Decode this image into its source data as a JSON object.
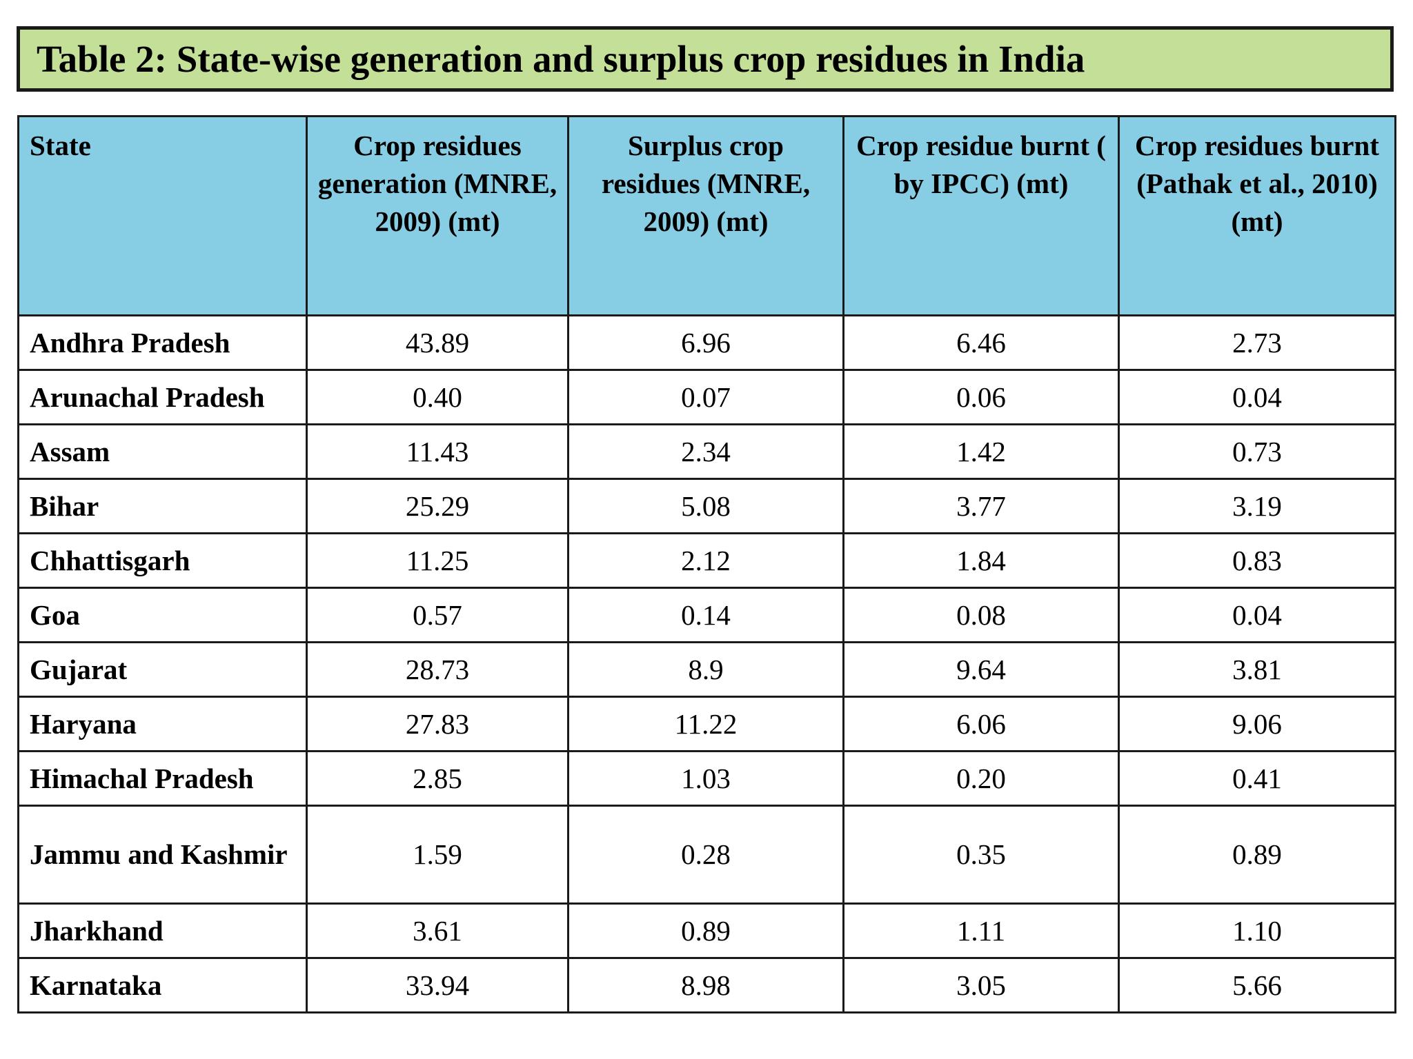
{
  "title": "Table 2: State-wise generation and surplus crop residues in India",
  "table": {
    "headers": [
      "State",
      "Crop residues generation (MNRE, 2009) (mt)",
      "Surplus crop residues (MNRE, 2009) (mt)",
      "Crop residue burnt ( by IPCC) (mt)",
      "Crop residues burnt (Pathak et al., 2010) (mt)"
    ],
    "rows": [
      {
        "state": "Andhra Pradesh",
        "generation": "43.89",
        "surplus": "6.96",
        "burnt_ipcc": "6.46",
        "burnt_pathak": "2.73"
      },
      {
        "state": "Arunachal Pradesh",
        "generation": "0.40",
        "surplus": "0.07",
        "burnt_ipcc": "0.06",
        "burnt_pathak": "0.04"
      },
      {
        "state": "Assam",
        "generation": "11.43",
        "surplus": "2.34",
        "burnt_ipcc": "1.42",
        "burnt_pathak": "0.73"
      },
      {
        "state": "Bihar",
        "generation": "25.29",
        "surplus": "5.08",
        "burnt_ipcc": "3.77",
        "burnt_pathak": "3.19"
      },
      {
        "state": "Chhattisgarh",
        "generation": "11.25",
        "surplus": "2.12",
        "burnt_ipcc": "1.84",
        "burnt_pathak": "0.83"
      },
      {
        "state": "Goa",
        "generation": "0.57",
        "surplus": "0.14",
        "burnt_ipcc": "0.08",
        "burnt_pathak": "0.04"
      },
      {
        "state": "Gujarat",
        "generation": "28.73",
        "surplus": "8.9",
        "burnt_ipcc": "9.64",
        "burnt_pathak": "3.81"
      },
      {
        "state": "Haryana",
        "generation": "27.83",
        "surplus": "11.22",
        "burnt_ipcc": "6.06",
        "burnt_pathak": "9.06"
      },
      {
        "state": "Himachal Pradesh",
        "generation": "2.85",
        "surplus": "1.03",
        "burnt_ipcc": "0.20",
        "burnt_pathak": "0.41"
      },
      {
        "state": "Jammu and Kashmir",
        "generation": "1.59",
        "surplus": "0.28",
        "burnt_ipcc": "0.35",
        "burnt_pathak": "0.89"
      },
      {
        "state": "Jharkhand",
        "generation": "3.61",
        "surplus": "0.89",
        "burnt_ipcc": "1.11",
        "burnt_pathak": "1.10"
      },
      {
        "state": "Karnataka",
        "generation": "33.94",
        "surplus": "8.98",
        "burnt_ipcc": "3.05",
        "burnt_pathak": "5.66"
      }
    ]
  },
  "colors": {
    "title_background": "#c3df98",
    "header_background": "#87cde4",
    "border": "#1a1a1a"
  }
}
